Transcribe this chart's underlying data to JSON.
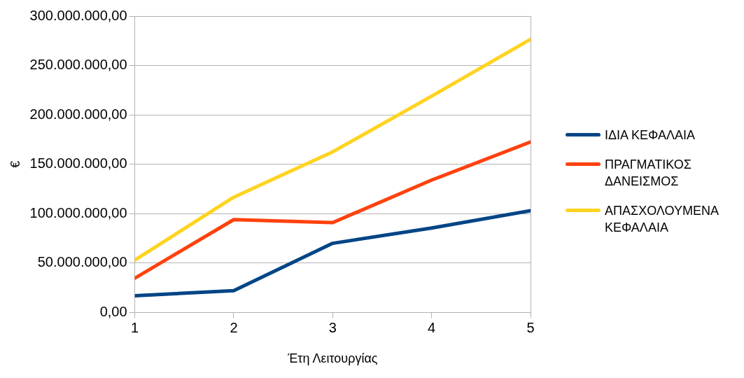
{
  "chart_data": {
    "type": "line",
    "xlabel": "Έτη Λειτουργίας",
    "ylabel": "€",
    "x": [
      1,
      2,
      3,
      4,
      5
    ],
    "xlim": [
      1,
      5
    ],
    "xticks": [
      1,
      2,
      3,
      4,
      5
    ],
    "ylim": [
      0,
      300000000
    ],
    "yticks": [
      {
        "value": 0,
        "label": "0,00"
      },
      {
        "value": 50000000,
        "label": "50.000.000,00"
      },
      {
        "value": 100000000,
        "label": "100.000.000,00"
      },
      {
        "value": 150000000,
        "label": "150.000.000,00"
      },
      {
        "value": 200000000,
        "label": "200.000.000,00"
      },
      {
        "value": 250000000,
        "label": "250.000.000,00"
      },
      {
        "value": 300000000,
        "label": "300.000.000,00"
      }
    ],
    "grid": "y",
    "legend": "right",
    "marker": "none",
    "series": [
      {
        "name": "ΙΔΙΑ ΚΕΦΑΛΑΙΑ",
        "color": "#004586",
        "values": [
          17000000,
          22000000,
          70000000,
          85500000,
          103000000
        ]
      },
      {
        "name": "ΠΡΑΓΜΑΤΙΚΟΣ ΔΑΝΕΙΣΜΟΣ",
        "color": "#ff420e",
        "values": [
          34700000,
          94000000,
          91000000,
          134000000,
          172500000
        ]
      },
      {
        "name": "ΑΠΑΣΧΟΛΟΥΜΕΝΑ ΚΕΦΑΛΑΙΑ",
        "color": "#ffd320",
        "values": [
          53000000,
          116700000,
          162600000,
          219000000,
          276500000
        ]
      }
    ]
  }
}
